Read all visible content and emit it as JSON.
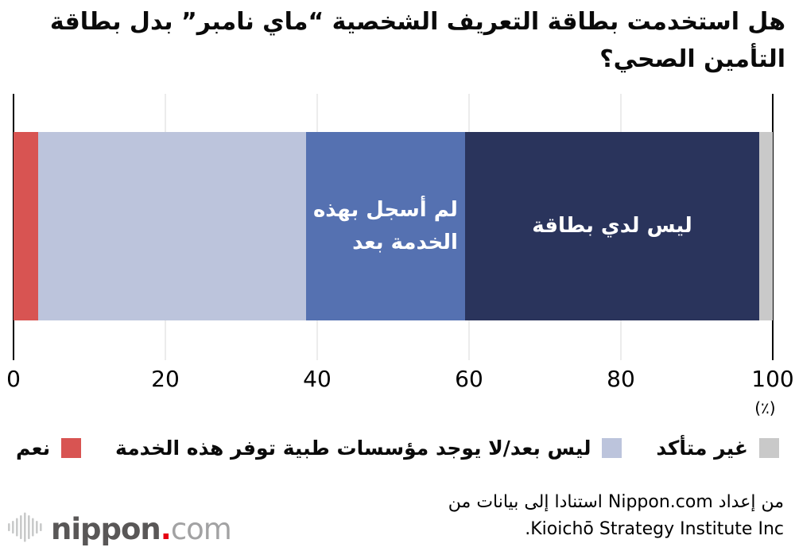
{
  "title": {
    "line1": "هل استخدمت بطاقة التعريف الشخصية “ماي نامبر” بدل بطاقة",
    "line2": "التأمين الصحي؟"
  },
  "chart_data": {
    "type": "bar",
    "orientation": "horizontal",
    "stacked": true,
    "title": "هل استخدمت بطاقة التعريف الشخصية “ماي نامبر” بدل بطاقة التأمين الصحي؟",
    "unit": "(٪)",
    "xlim": [
      0,
      100
    ],
    "x_ticks": [
      0,
      20,
      40,
      60,
      80,
      100
    ],
    "grid": true,
    "segments": [
      {
        "name": "نعم",
        "value": 3.2,
        "color": "#d85452",
        "label_inside": ""
      },
      {
        "name": "ليس بعد/لا يوجد مؤسسات طبية توفر هذه الخدمة",
        "value": 35.3,
        "color": "#bcc4dc",
        "label_inside": ""
      },
      {
        "name": "لم أسجل بهذه الخدمة بعد",
        "value": 21.0,
        "color": "#5571b1",
        "label_inside": "لم أسجل بهذه\nالخدمة بعد"
      },
      {
        "name": "ليس لدي بطاقة",
        "value": 38.7,
        "color": "#2a345c",
        "label_inside": "ليس لدي بطاقة"
      },
      {
        "name": "غير متأكد",
        "value": 1.8,
        "color": "#c9c9c9",
        "label_inside": ""
      }
    ],
    "legend_position": "bottom",
    "legend": [
      {
        "label": "غير متأكد",
        "color": "#c9c9c9"
      },
      {
        "label": "ليس بعد/لا يوجد مؤسسات طبية توفر هذه الخدمة",
        "color": "#bcc4dc"
      },
      {
        "label": "نعم",
        "color": "#d85452"
      }
    ]
  },
  "footer": {
    "credit_line1": "من إعداد Nippon.com استنادا إلى بيانات من",
    "credit_line2": "Kioichō Strategy Institute Inc.",
    "logo": {
      "icon": "soundwave-bars-icon",
      "text_main": "nippon",
      "text_dot": ".",
      "text_suffix": "com"
    }
  }
}
